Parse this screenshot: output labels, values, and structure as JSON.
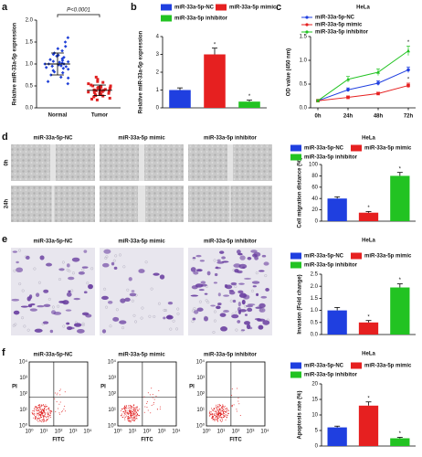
{
  "chart_data": [
    {
      "type": "dot",
      "panel": "a",
      "ylabel": "Relative miR-33a-5p expression",
      "annotation": "P<0.0001",
      "categories": [
        "Normal",
        "Tumor"
      ],
      "groups": [
        {
          "color": "#1f3fd6",
          "mean": 1.0,
          "sd": 0.25,
          "values": [
            1.0,
            1.05,
            0.95,
            1.1,
            0.9,
            1.2,
            0.85,
            1.15,
            1.0,
            0.98,
            1.3,
            0.7,
            1.4,
            0.75,
            1.25,
            0.8,
            1.08,
            0.92,
            1.02,
            1.18,
            0.88,
            1.5,
            0.6,
            1.35,
            0.68,
            1.12,
            0.96,
            1.04,
            1.6,
            0.55,
            0.82,
            1.22,
            0.94,
            1.06,
            1.0
          ]
        },
        {
          "color": "#e02020",
          "mean": 0.4,
          "sd": 0.12,
          "values": [
            0.4,
            0.45,
            0.35,
            0.5,
            0.3,
            0.42,
            0.38,
            0.55,
            0.25,
            0.48,
            0.32,
            0.6,
            0.2,
            0.44,
            0.36,
            0.7,
            0.28,
            0.4,
            0.46,
            0.34,
            0.52,
            0.18,
            0.41,
            0.39,
            0.65,
            0.3,
            0.43,
            0.37,
            0.5,
            0.22,
            0.47,
            0.33,
            0.58,
            0.27,
            0.4
          ]
        }
      ],
      "ylim": [
        0,
        2.0
      ],
      "yticks": [
        {
          "value": 0,
          "label": "0.0"
        },
        {
          "value": 0.5,
          "label": "0.5"
        },
        {
          "value": 1.0,
          "label": "1.0"
        },
        {
          "value": 1.5,
          "label": "1.5"
        },
        {
          "value": 2.0,
          "label": "2.0"
        }
      ]
    },
    {
      "type": "bar",
      "panel": "b",
      "ylabel": "Relative miR-33a-5p expression",
      "categories": [
        "miR-33a-5p-NC",
        "miR-33a-5p mimic",
        "miR-33a-5p inhibitor"
      ],
      "colors": [
        "#1f3fe0",
        "#e62020",
        "#22c322"
      ],
      "values": [
        1.0,
        3.0,
        0.35
      ],
      "errors": [
        0.12,
        0.35,
        0.08
      ],
      "significance": [
        null,
        "*",
        "*"
      ],
      "ylim": [
        0,
        4
      ],
      "yticks": [
        0,
        1,
        2,
        3,
        4
      ]
    },
    {
      "type": "line",
      "panel": "c",
      "title": "HeLa",
      "ylabel": "OD value (450 nm)",
      "categories": [
        "0h",
        "24h",
        "48h",
        "72h"
      ],
      "series": [
        {
          "name": "miR-33a-5p-NC",
          "color": "#1f3fe0",
          "values": [
            0.15,
            0.38,
            0.52,
            0.8
          ],
          "errors": [
            0.02,
            0.04,
            0.05,
            0.06
          ],
          "significance": [
            null,
            null,
            null,
            null
          ]
        },
        {
          "name": "miR-33a-5p mimic",
          "color": "#e62020",
          "values": [
            0.15,
            0.22,
            0.3,
            0.47
          ],
          "errors": [
            0.02,
            0.03,
            0.03,
            0.05
          ],
          "significance": [
            null,
            null,
            null,
            "*"
          ]
        },
        {
          "name": "miR-33a-5p inhibitor",
          "color": "#22c322",
          "values": [
            0.15,
            0.6,
            0.75,
            1.2
          ],
          "errors": [
            0.02,
            0.06,
            0.07,
            0.1
          ],
          "significance": [
            null,
            null,
            null,
            "*"
          ]
        }
      ],
      "ylim": [
        0,
        1.5
      ],
      "yticks": [
        {
          "value": 0,
          "label": "0.0"
        },
        {
          "value": 0.5,
          "label": "0.5"
        },
        {
          "value": 1.0,
          "label": "1.0"
        },
        {
          "value": 1.5,
          "label": "1.5"
        }
      ]
    },
    {
      "type": "bar",
      "panel": "d",
      "title": "HeLa",
      "ylabel": "Cell migration distance (%)",
      "categories": [
        "miR-33a-5p-NC",
        "miR-33a-5p mimic",
        "miR-33a-5p inhibitor"
      ],
      "colors": [
        "#1f3fe0",
        "#e62020",
        "#22c322"
      ],
      "values": [
        40,
        15,
        80
      ],
      "errors": [
        3,
        2,
        6
      ],
      "significance": [
        null,
        "*",
        "*"
      ],
      "ylim": [
        0,
        100
      ],
      "yticks": [
        0,
        20,
        40,
        60,
        80,
        100
      ]
    },
    {
      "type": "bar",
      "panel": "e",
      "title": "HeLa",
      "ylabel": "Invasion (Fold change)",
      "categories": [
        "miR-33a-5p-NC",
        "miR-33a-5p mimic",
        "miR-33a-5p inhibitor"
      ],
      "colors": [
        "#1f3fe0",
        "#e62020",
        "#22c322"
      ],
      "values": [
        1.0,
        0.5,
        1.95
      ],
      "errors": [
        0.12,
        0.08,
        0.15
      ],
      "significance": [
        null,
        "*",
        "*"
      ],
      "ylim": [
        0,
        2.5
      ],
      "yticks": [
        {
          "value": 0,
          "label": "0.0"
        },
        {
          "value": 0.5,
          "label": "0.5"
        },
        {
          "value": 1.0,
          "label": "1.0"
        },
        {
          "value": 1.5,
          "label": "1.5"
        },
        {
          "value": 2.0,
          "label": "2.0"
        },
        {
          "value": 2.5,
          "label": "2.5"
        }
      ]
    },
    {
      "type": "bar",
      "panel": "f",
      "title": "HeLa",
      "ylabel": "Apoptosis rate (%)",
      "categories": [
        "miR-33a-5p-NC",
        "miR-33a-5p mimic",
        "miR-33a-5p inhibitor"
      ],
      "colors": [
        "#1f3fe0",
        "#e62020",
        "#22c322"
      ],
      "values": [
        6,
        13,
        2.5
      ],
      "errors": [
        0.4,
        1.2,
        0.3
      ],
      "significance": [
        null,
        "*",
        "*"
      ],
      "ylim": [
        0,
        20
      ],
      "yticks": [
        0,
        5,
        10,
        15,
        20
      ]
    }
  ],
  "images": {
    "d": {
      "columns": [
        "miR-33a-5p-NC",
        "miR-33a-5p mimic",
        "miR-33a-5p inhibitor"
      ],
      "rows": [
        "0h",
        "24h"
      ]
    },
    "e": {
      "columns": [
        "miR-33a-5p-NC",
        "miR-33a-5p mimic",
        "miR-33a-5p inhibitor"
      ]
    },
    "f": {
      "columns": [
        "miR-33a-5p-NC",
        "miR-33a-5p mimic",
        "miR-33a-5p inhibitor"
      ],
      "ylabel": "PI",
      "xlabel": "FITC",
      "axis_ticks": [
        "10⁰",
        "10¹",
        "10²",
        "10³",
        "10⁴"
      ]
    }
  }
}
